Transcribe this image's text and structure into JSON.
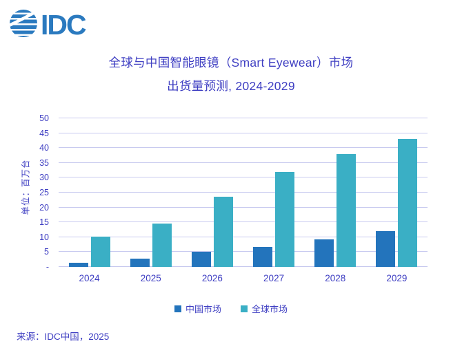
{
  "logo": {
    "text": "IDC",
    "color": "#2B7ABF"
  },
  "title": {
    "line1": "全球与中国智能眼镜（Smart Eyewear）市场",
    "line2": "出货量预测, 2024-2029"
  },
  "chart_data": {
    "type": "bar",
    "categories": [
      "2024",
      "2025",
      "2026",
      "2027",
      "2028",
      "2029"
    ],
    "series": [
      {
        "name": "中国市场",
        "color": "#2374BC",
        "values": [
          1.3,
          2.8,
          5.0,
          6.7,
          9.3,
          12.0
        ]
      },
      {
        "name": "全球市场",
        "color": "#3AAFC5",
        "values": [
          10.2,
          14.5,
          23.7,
          32.0,
          38.0,
          43.0
        ]
      }
    ],
    "ylabel": "单位：百万台",
    "xlabel": "",
    "ylim": [
      0,
      50
    ],
    "ytick_step": 5,
    "zero_tick_label": "-",
    "grid": true,
    "legend_position": "bottom"
  },
  "source": "来源：IDC中国，2025",
  "colors": {
    "text": "#3E3EC2",
    "grid": "#C7C9EF",
    "logo": "#2B7ABF"
  }
}
